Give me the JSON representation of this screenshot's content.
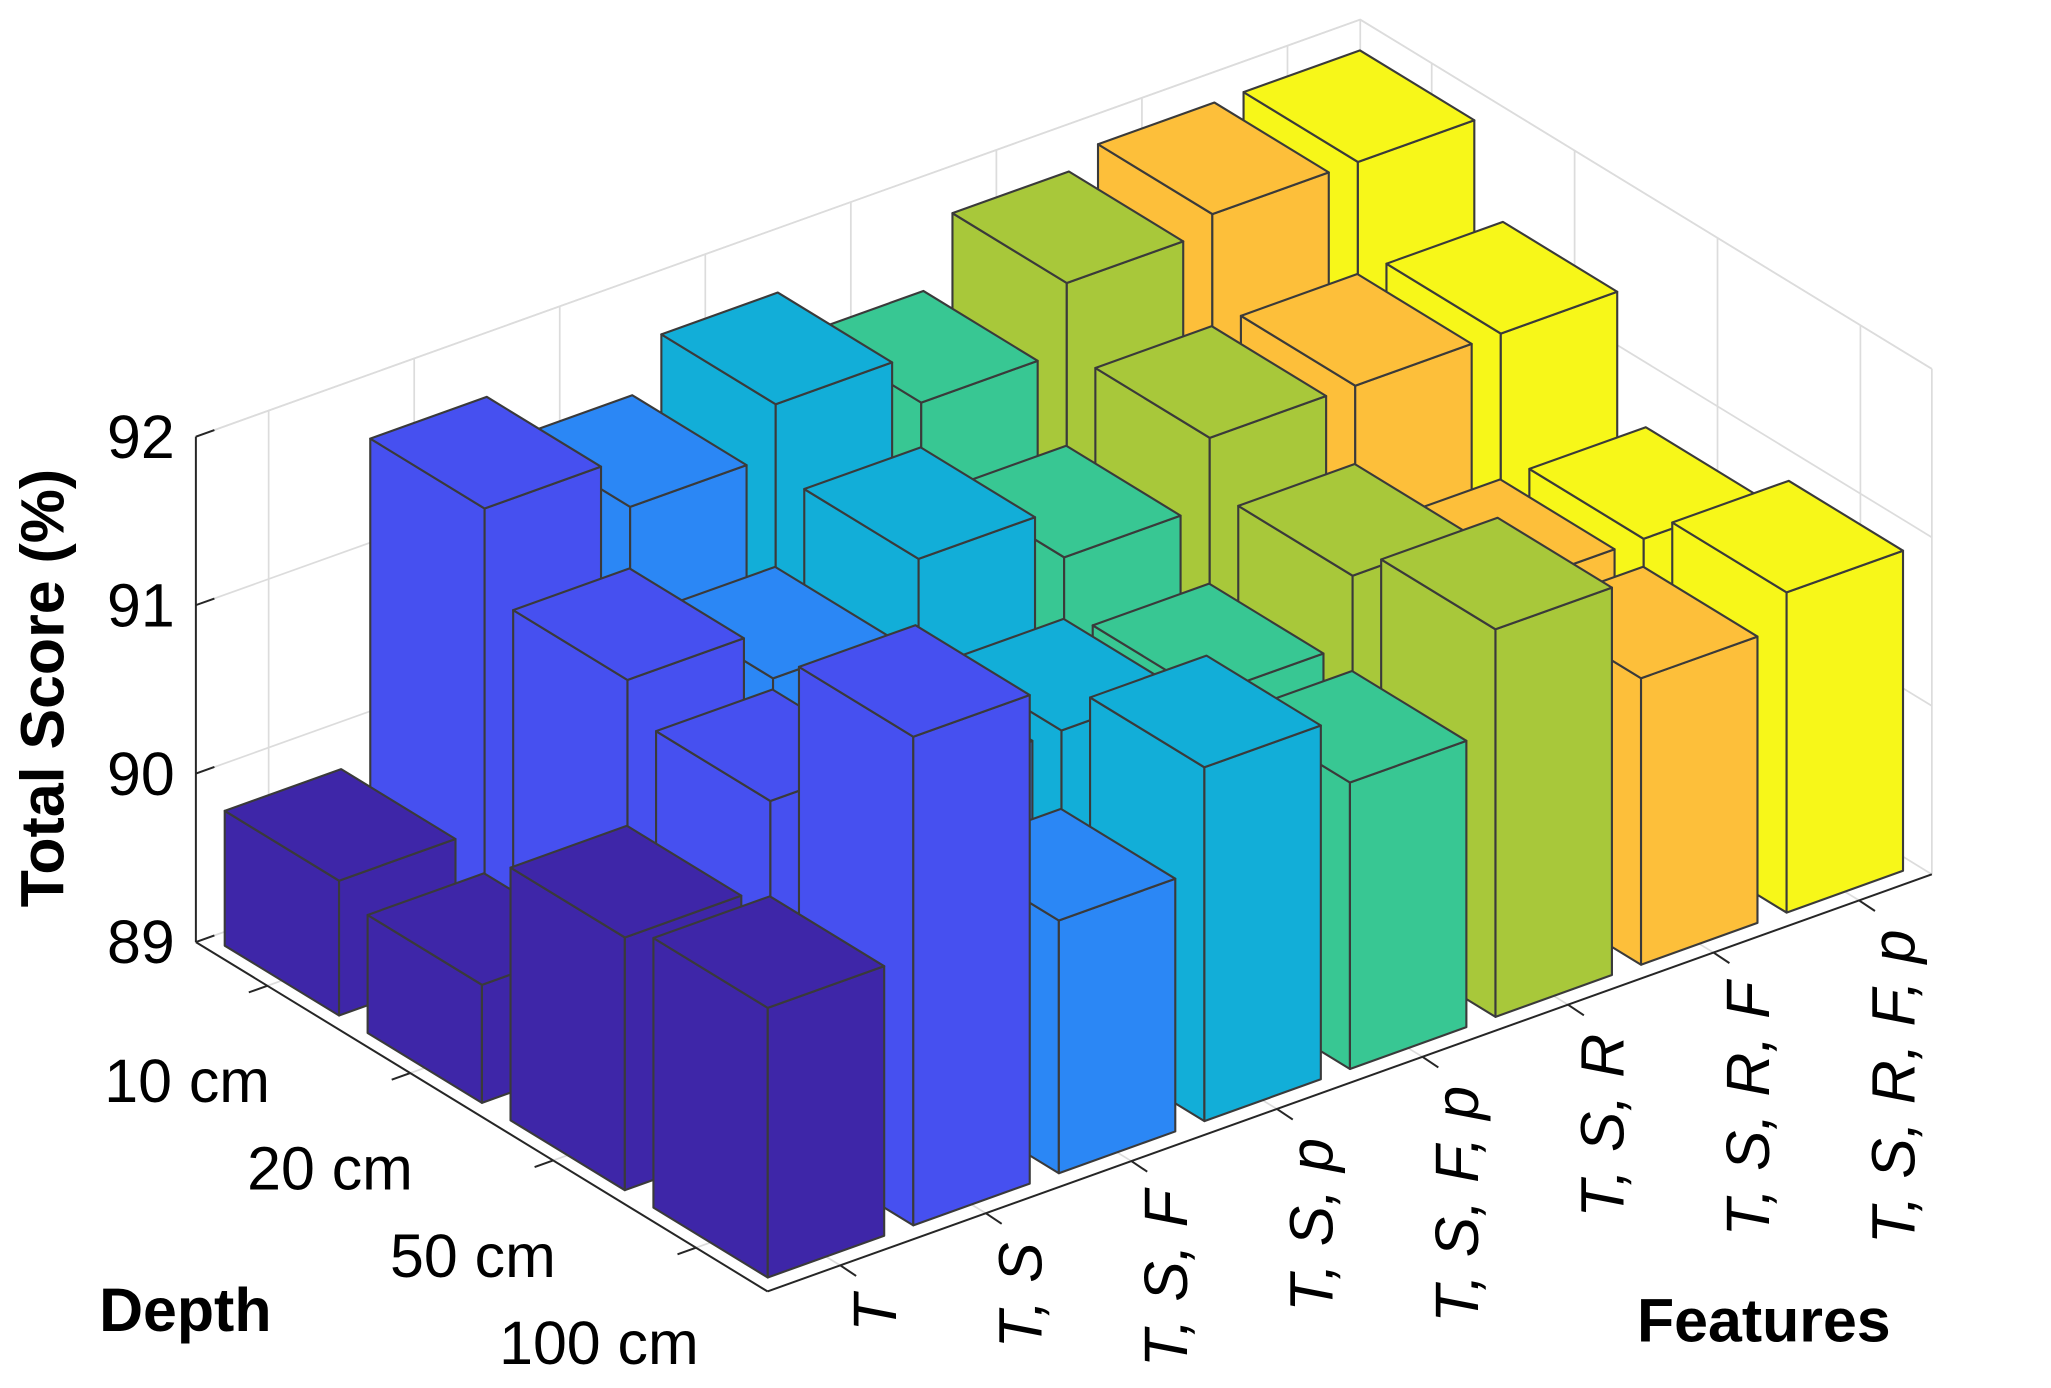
{
  "chart_data": {
    "type": "bar3d",
    "zlabel": "Total Score (%)",
    "xlabel": "Features",
    "ylabel": "Depth",
    "features": [
      "T",
      "T, S",
      "T, S, F",
      "T, S, p",
      "T, S, F, p",
      "T, S, R",
      "T, S, R, F",
      "T, S, R, F, p"
    ],
    "depths": [
      "10 cm",
      "20 cm",
      "50 cm",
      "100 cm"
    ],
    "colors": [
      "#3e26a8",
      "#4650f0",
      "#2b87f5",
      "#12aed8",
      "#38c793",
      "#a8c83a",
      "#fdbf3a",
      "#f7f719"
    ],
    "values": [
      [
        89.8,
        89.7,
        90.5,
        90.6
      ],
      [
        91.7,
        91.2,
        91.0,
        91.9
      ],
      [
        91.4,
        90.9,
        90.8,
        90.5
      ],
      [
        91.7,
        91.3,
        90.8,
        91.1
      ],
      [
        91.4,
        91.0,
        90.7,
        90.7
      ],
      [
        91.8,
        91.4,
        91.1,
        91.3
      ],
      [
        91.9,
        91.4,
        90.7,
        90.7
      ],
      [
        91.9,
        91.4,
        90.7,
        90.9
      ]
    ],
    "zlim": [
      89,
      92
    ],
    "zticks": [
      89,
      90,
      91,
      92
    ],
    "grid": true
  }
}
